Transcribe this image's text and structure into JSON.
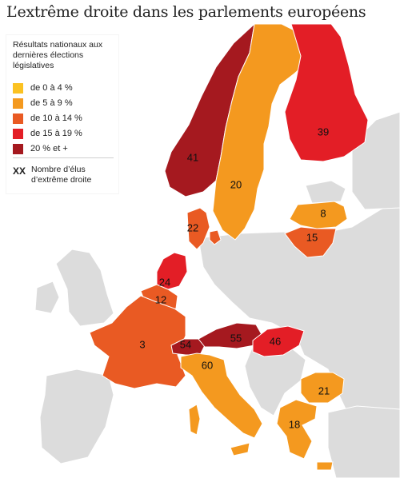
{
  "title": "L’extrême droite dans les parlements européens",
  "legend": {
    "heading": "Résultats nationaux aux dernières élections législatives",
    "items": [
      {
        "label": "de 0 à 4 %",
        "color": "#FBC222"
      },
      {
        "label": "de 5 à 9 %",
        "color": "#F4991F"
      },
      {
        "label": "de 10 à 14 %",
        "color": "#E95A23"
      },
      {
        "label": "de 15 à 19 %",
        "color": "#E31E26"
      },
      {
        "label": "20 % et +",
        "color": "#A5191F"
      }
    ],
    "marker": "XX",
    "marker_label": "Nombre d’élus d’extrême droite"
  },
  "base_colors": {
    "sea": "#ffffff",
    "land": "#DCDCDC",
    "border": "#ffffff"
  },
  "countries": [
    {
      "id": "norway",
      "seats": "41",
      "color": "#A5191F"
    },
    {
      "id": "sweden",
      "seats": "20",
      "color": "#F4991F"
    },
    {
      "id": "finland",
      "seats": "39",
      "color": "#E31E26"
    },
    {
      "id": "denmark",
      "seats": "22",
      "color": "#E95A23"
    },
    {
      "id": "latvia",
      "seats": "8",
      "color": "#F4991F"
    },
    {
      "id": "lithuania",
      "seats": "15",
      "color": "#E95A23"
    },
    {
      "id": "netherlands",
      "seats": "24",
      "color": "#E31E26"
    },
    {
      "id": "belgium",
      "seats": "12",
      "color": "#E95A23"
    },
    {
      "id": "france",
      "seats": "3",
      "color": "#E95A23"
    },
    {
      "id": "switzerland",
      "seats": "54",
      "color": "#A5191F"
    },
    {
      "id": "austria",
      "seats": "55",
      "color": "#A5191F"
    },
    {
      "id": "hungary",
      "seats": "46",
      "color": "#E31E26"
    },
    {
      "id": "italy",
      "seats": "60",
      "color": "#F4991F"
    },
    {
      "id": "bulgaria",
      "seats": "21",
      "color": "#F4991F"
    },
    {
      "id": "greece",
      "seats": "18",
      "color": "#F4991F"
    }
  ]
}
